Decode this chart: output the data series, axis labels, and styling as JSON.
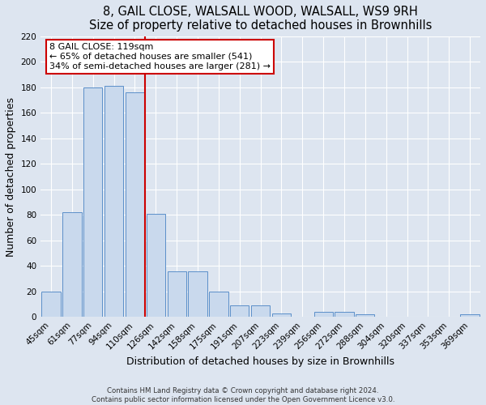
{
  "title1": "8, GAIL CLOSE, WALSALL WOOD, WALSALL, WS9 9RH",
  "title2": "Size of property relative to detached houses in Brownhills",
  "xlabel": "Distribution of detached houses by size in Brownhills",
  "ylabel": "Number of detached properties",
  "bar_labels": [
    "45sqm",
    "61sqm",
    "77sqm",
    "94sqm",
    "110sqm",
    "126sqm",
    "142sqm",
    "158sqm",
    "175sqm",
    "191sqm",
    "207sqm",
    "223sqm",
    "239sqm",
    "256sqm",
    "272sqm",
    "288sqm",
    "304sqm",
    "320sqm",
    "337sqm",
    "353sqm",
    "369sqm"
  ],
  "bar_heights": [
    20,
    82,
    180,
    181,
    176,
    81,
    36,
    36,
    20,
    9,
    9,
    3,
    0,
    4,
    4,
    2,
    0,
    0,
    0,
    0,
    2
  ],
  "bar_color": "#c9d9ed",
  "bar_edge_color": "#5b8fc9",
  "red_line_bar_index": 5,
  "marker_label": "8 GAIL CLOSE: 119sqm",
  "marker_color": "#cc0000",
  "annotation_line1": "← 65% of detached houses are smaller (541)",
  "annotation_line2": "34% of semi-detached houses are larger (281) →",
  "annotation_box_color": "#ffffff",
  "annotation_box_edge": "#cc0000",
  "ylim": [
    0,
    220
  ],
  "yticks": [
    0,
    20,
    40,
    60,
    80,
    100,
    120,
    140,
    160,
    180,
    200,
    220
  ],
  "footer1": "Contains HM Land Registry data © Crown copyright and database right 2024.",
  "footer2": "Contains public sector information licensed under the Open Government Licence v3.0.",
  "background_color": "#dde5f0",
  "plot_bg_color": "#dde5f0",
  "grid_color": "#ffffff",
  "title_fontsize": 10.5,
  "axis_label_fontsize": 9,
  "tick_fontsize": 7.5,
  "annotation_fontsize": 8
}
